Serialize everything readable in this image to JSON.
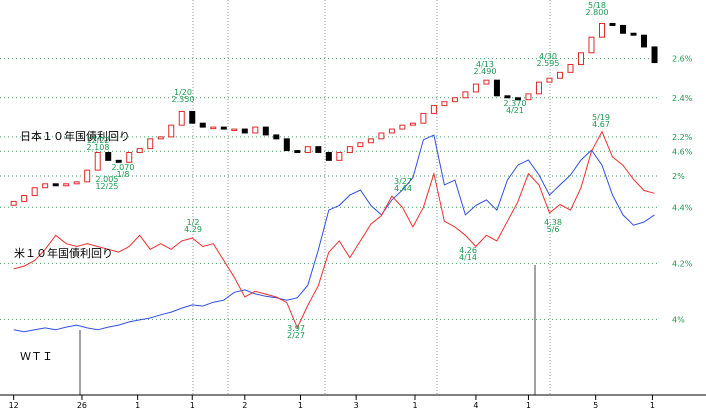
{
  "chart_data": {
    "type": "candlestick-overlay",
    "xlim": [
      -1.3,
      65.9
    ],
    "xticks": [
      {
        "value": 0,
        "label": "12"
      },
      {
        "value": 6.5,
        "label": "26"
      },
      {
        "value": 11.8,
        "label": "1"
      },
      {
        "value": 17,
        "label": "1"
      },
      {
        "value": 22,
        "label": "2"
      },
      {
        "value": 27.3,
        "label": "1"
      },
      {
        "value": 32.6,
        "label": "3"
      },
      {
        "value": 38.2,
        "label": "1"
      },
      {
        "value": 44,
        "label": "4"
      },
      {
        "value": 49,
        "label": "1"
      },
      {
        "value": 55.4,
        "label": "5"
      },
      {
        "value": 60.8,
        "label": "1"
      }
    ],
    "series": [
      {
        "name": "日本１０年国債利回り",
        "type": "candlestick",
        "color_up": "#e02828",
        "color_down": "#000000",
        "ylim": [
          0.88,
          2.9
        ],
        "yticks": [
          {
            "value": 2.6,
            "label": "2.6%"
          },
          {
            "value": 2.4,
            "label": "2.4%"
          },
          {
            "value": 2.2,
            "label": "2.2%"
          },
          {
            "value": 2.0,
            "label": "2%"
          }
        ],
        "open": [
          1.85,
          1.87,
          1.9,
          1.94,
          1.96,
          1.95,
          1.96,
          1.97,
          2.03,
          2.12,
          2.08,
          2.07,
          2.12,
          2.14,
          2.19,
          2.2,
          2.26,
          2.33,
          2.27,
          2.25,
          2.25,
          2.24,
          2.24,
          2.22,
          2.25,
          2.21,
          2.19,
          2.13,
          2.12,
          2.15,
          2.12,
          2.08,
          2.12,
          2.15,
          2.17,
          2.19,
          2.22,
          2.24,
          2.26,
          2.27,
          2.32,
          2.36,
          2.38,
          2.4,
          2.43,
          2.47,
          2.49,
          2.41,
          2.4,
          2.39,
          2.42,
          2.48,
          2.5,
          2.53,
          2.57,
          2.63,
          2.71,
          2.78,
          2.77,
          2.73,
          2.72,
          2.66
        ],
        "close": [
          1.87,
          1.9,
          1.94,
          1.96,
          1.95,
          1.96,
          1.97,
          2.03,
          2.12,
          2.08,
          2.07,
          2.12,
          2.14,
          2.19,
          2.2,
          2.26,
          2.33,
          2.27,
          2.25,
          2.25,
          2.24,
          2.24,
          2.22,
          2.25,
          2.21,
          2.19,
          2.13,
          2.12,
          2.15,
          2.12,
          2.08,
          2.12,
          2.15,
          2.17,
          2.19,
          2.22,
          2.24,
          2.26,
          2.27,
          2.32,
          2.36,
          2.38,
          2.4,
          2.43,
          2.47,
          2.49,
          2.41,
          2.4,
          2.39,
          2.42,
          2.48,
          2.5,
          2.53,
          2.57,
          2.63,
          2.71,
          2.78,
          2.77,
          2.73,
          2.72,
          2.66,
          2.58
        ]
      },
      {
        "name": "米１０年国債利回り",
        "type": "line",
        "color": "#f03030",
        "ylim": [
          3.73,
          5.14
        ],
        "yticks": [
          {
            "value": 4.6,
            "label": "4.6%"
          },
          {
            "value": 4.4,
            "label": "4.4%"
          },
          {
            "value": 4.2,
            "label": "4.2%"
          },
          {
            "value": 4.0,
            "label": "4%"
          }
        ],
        "values": [
          4.18,
          4.19,
          4.21,
          4.25,
          4.3,
          4.27,
          4.26,
          4.27,
          4.26,
          4.25,
          4.24,
          4.26,
          4.3,
          4.25,
          4.27,
          4.25,
          4.28,
          4.29,
          4.26,
          4.27,
          4.21,
          4.15,
          4.08,
          4.1,
          4.09,
          4.08,
          4.06,
          3.97,
          4.05,
          4.12,
          4.24,
          4.28,
          4.22,
          4.28,
          4.34,
          4.37,
          4.44,
          4.4,
          4.33,
          4.4,
          4.52,
          4.35,
          4.33,
          4.3,
          4.26,
          4.3,
          4.28,
          4.35,
          4.42,
          4.52,
          4.48,
          4.38,
          4.41,
          4.39,
          4.47,
          4.6,
          4.67,
          4.58,
          4.55,
          4.5,
          4.46,
          4.45
        ]
      },
      {
        "name": "ＷＴＩ",
        "type": "line",
        "color": "#3050e0",
        "ylim": [
          0,
          100
        ],
        "values": [
          16.5,
          16,
          16.5,
          17,
          16.5,
          17.2,
          17.7,
          17,
          16.5,
          17.2,
          17.7,
          18.5,
          19,
          19.5,
          20.3,
          21,
          22,
          22.8,
          22.5,
          23.5,
          24,
          26,
          26.6,
          25.6,
          25,
          24.6,
          24,
          24.6,
          27.8,
          36.7,
          46.8,
          48,
          50.6,
          51.9,
          48,
          45.6,
          49.4,
          51.9,
          55,
          64.6,
          65.8,
          53.2,
          54.4,
          45.6,
          48,
          49.4,
          46.8,
          54.4,
          58.2,
          59.5,
          55.7,
          50.6,
          53.2,
          55.7,
          59.5,
          62,
          58.2,
          50.6,
          45.6,
          43,
          43.8,
          45.6
        ]
      }
    ],
    "annotations": [
      [
        "12/22",
        "2.108"
      ],
      [
        "2.005",
        "12/25"
      ],
      [
        "2.070",
        "1/8"
      ],
      [
        "1/20",
        "2.350"
      ],
      [
        "4/13",
        "2.490"
      ],
      [
        "4/30",
        "2.595"
      ],
      [
        "5/18",
        "2.800"
      ],
      [
        "2.370",
        "4/21"
      ],
      [
        "1/2",
        "4.29"
      ],
      [
        "3.97",
        "2/27"
      ],
      [
        "3/27",
        "4.44"
      ],
      [
        "4.26",
        "4/14"
      ],
      [
        "4.38",
        "5/6"
      ],
      [
        "5/19",
        "4.67"
      ]
    ]
  }
}
